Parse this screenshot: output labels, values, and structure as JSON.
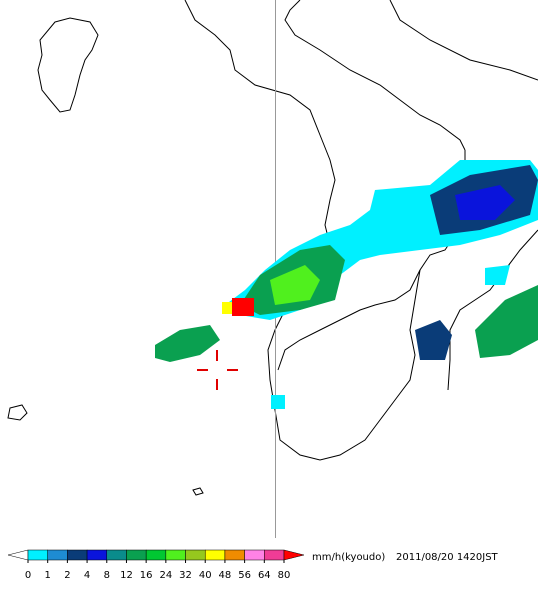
{
  "legend": {
    "ticks": [
      0,
      1,
      2,
      4,
      8,
      12,
      16,
      24,
      32,
      40,
      48,
      56,
      64,
      80
    ],
    "colors": [
      "#00f0ff",
      "#1e8cd2",
      "#0a3c78",
      "#0a14dc",
      "#0a8c8c",
      "#0aa050",
      "#00c832",
      "#50f01e",
      "#96c81e",
      "#ffff00",
      "#f08c00",
      "#ff82e6",
      "#f03c96"
    ],
    "under_color": "#ffffff",
    "over_color": "#ff0000",
    "unit": "mm/h(kyoudo)",
    "timestamp": "2011/08/20 1420JST"
  }
}
